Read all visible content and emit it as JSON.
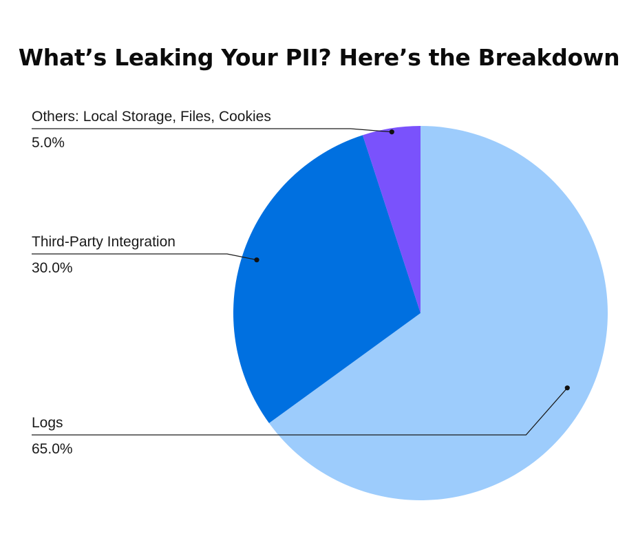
{
  "chart_data": {
    "type": "pie",
    "title": "What’s Leaking Your PII? Here’s the Breakdown",
    "slices": [
      {
        "label": "Logs",
        "value": 65.0,
        "value_label": "65.0%",
        "color": "#9DCCFC"
      },
      {
        "label": "Third-Party Integration",
        "value": 30.0,
        "value_label": "30.0%",
        "color": "#0070E0"
      },
      {
        "label": "Others: Local Storage, Files, Cookies",
        "value": 5.0,
        "value_label": "5.0%",
        "color": "#7A52FC"
      }
    ],
    "start": "top",
    "direction": "clockwise",
    "legend": "none",
    "label_placement": "left-with-leader-lines"
  }
}
